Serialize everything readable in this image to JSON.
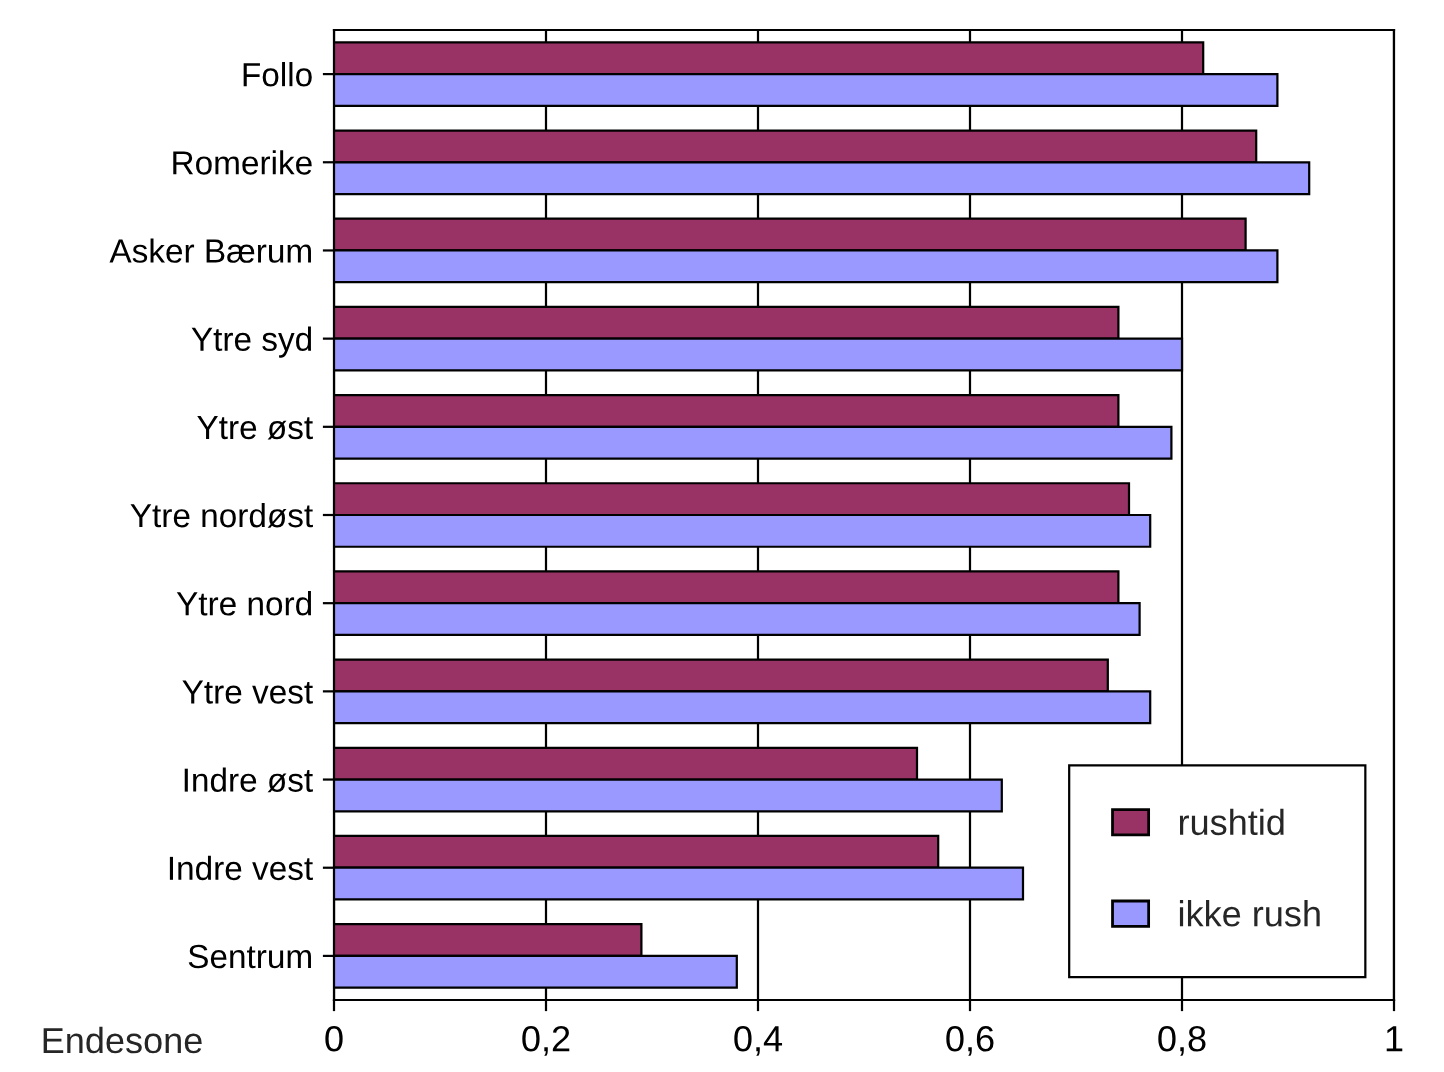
{
  "chart_data": {
    "type": "bar",
    "orientation": "horizontal",
    "ylabel": "Endesone",
    "categories": [
      "Follo",
      "Romerike",
      "Asker Bærum",
      "Ytre syd",
      "Ytre øst",
      "Ytre nordøst",
      "Ytre nord",
      "Ytre vest",
      "Indre øst",
      "Indre vest",
      "Sentrum"
    ],
    "series": [
      {
        "name": "rushtid",
        "color": "#993366",
        "values": [
          0.82,
          0.87,
          0.86,
          0.74,
          0.74,
          0.75,
          0.74,
          0.73,
          0.55,
          0.57,
          0.29
        ]
      },
      {
        "name": "ikke rush",
        "color": "#9999ff",
        "values": [
          0.89,
          0.92,
          0.89,
          0.8,
          0.79,
          0.77,
          0.76,
          0.77,
          0.63,
          0.65,
          0.38
        ]
      }
    ],
    "xlim": [
      0,
      1
    ],
    "xticks": [
      0,
      {
        "value": 0.2,
        "label": "0,2"
      },
      {
        "value": 0.4,
        "label": "0,4"
      },
      {
        "value": 0.6,
        "label": "0,6"
      },
      {
        "value": 0.8,
        "label": "0,8"
      },
      1
    ],
    "grid": "x",
    "legend": "bottom right"
  }
}
